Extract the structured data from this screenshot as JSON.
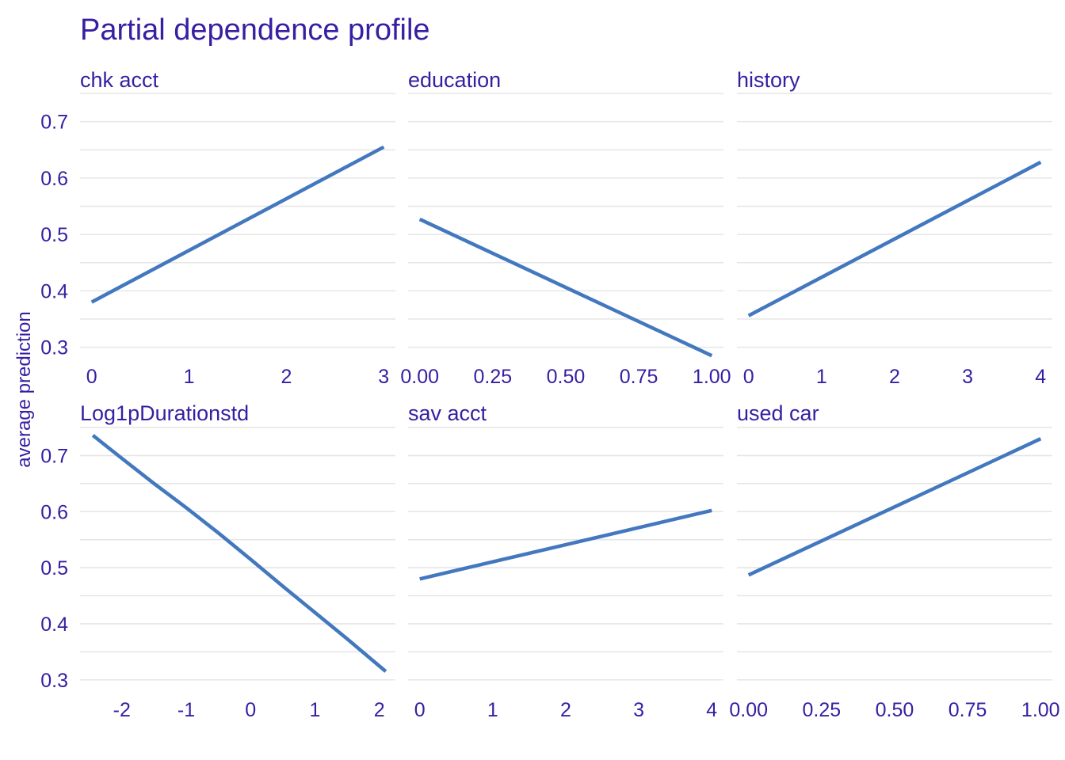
{
  "colors": {
    "text": "#371ea3",
    "line": "#4378bf",
    "grid": "#e6e6e6",
    "background": "#ffffff"
  },
  "chart_data": {
    "type": "line",
    "title": "Partial dependence profile",
    "ylabel": "average prediction",
    "ylim": [
      0.27,
      0.75
    ],
    "yticks": [
      0.3,
      0.4,
      0.5,
      0.6,
      0.7
    ],
    "grid": true,
    "layout": "2x3 facets, shared y axis, free x axes",
    "panels": [
      {
        "name": "chk_acct",
        "label": "chk  acct",
        "xlim": [
          -0.12,
          3.12
        ],
        "xticks": [
          0,
          1,
          2,
          3
        ],
        "xticklabels": [
          "0",
          "1",
          "2",
          "3"
        ],
        "x": [
          0,
          3
        ],
        "y": [
          0.38,
          0.655
        ]
      },
      {
        "name": "education",
        "label": "education",
        "xlim": [
          -0.04,
          1.04
        ],
        "xticks": [
          0,
          0.25,
          0.5,
          0.75,
          1
        ],
        "xticklabels": [
          "0.00",
          "0.25",
          "0.50",
          "0.75",
          "1.00"
        ],
        "x": [
          0,
          1
        ],
        "y": [
          0.527,
          0.285
        ]
      },
      {
        "name": "history",
        "label": "history",
        "xlim": [
          -0.16,
          4.16
        ],
        "xticks": [
          0,
          1,
          2,
          3,
          4
        ],
        "xticklabels": [
          "0",
          "1",
          "2",
          "3",
          "4"
        ],
        "x": [
          0,
          4
        ],
        "y": [
          0.356,
          0.628
        ]
      },
      {
        "name": "Log1pDurationstd",
        "label": "Log1pDurationstd",
        "xlim": [
          -2.65,
          2.25
        ],
        "xticks": [
          -2,
          -1,
          0,
          1,
          2
        ],
        "xticklabels": [
          "-2",
          "-1",
          "0",
          "1",
          "2"
        ],
        "x": [
          -2.45,
          -2.0,
          -1.5,
          -1.0,
          -0.5,
          0.0,
          0.5,
          1.0,
          1.5,
          2.1
        ],
        "y": [
          0.736,
          0.695,
          0.65,
          0.607,
          0.562,
          0.515,
          0.467,
          0.42,
          0.373,
          0.315
        ]
      },
      {
        "name": "sav_acct",
        "label": "sav  acct",
        "xlim": [
          -0.16,
          4.16
        ],
        "xticks": [
          0,
          1,
          2,
          3,
          4
        ],
        "xticklabels": [
          "0",
          "1",
          "2",
          "3",
          "4"
        ],
        "x": [
          0,
          4
        ],
        "y": [
          0.48,
          0.602
        ]
      },
      {
        "name": "used_car",
        "label": "used  car",
        "xlim": [
          -0.04,
          1.04
        ],
        "xticks": [
          0,
          0.25,
          0.5,
          0.75,
          1
        ],
        "xticklabels": [
          "0.00",
          "0.25",
          "0.50",
          "0.75",
          "1.00"
        ],
        "x": [
          0,
          1
        ],
        "y": [
          0.487,
          0.73
        ]
      }
    ]
  }
}
